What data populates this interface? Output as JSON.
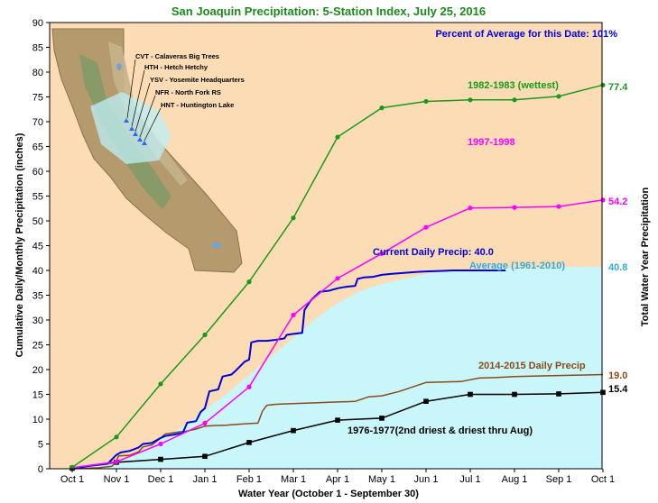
{
  "chart_data": {
    "type": "line",
    "title": "San Joaquin Precipitation: 5-Station Index, July 25, 2016",
    "ylabel": "Cumulative Daily/Monthly Precipitation (inches)",
    "ylabel_right": "Total Water Year Precipitation",
    "xlabel": "Water Year (October 1 - September 30)",
    "percent_note": "Percent of Average for this Date: 101%",
    "ylim": [
      0,
      90
    ],
    "y_ticks": [
      0,
      5,
      10,
      15,
      20,
      25,
      30,
      35,
      40,
      45,
      50,
      55,
      60,
      65,
      70,
      75,
      80,
      85,
      90
    ],
    "x_categories": [
      "Oct 1",
      "Nov 1",
      "Dec 1",
      "Jan 1",
      "Feb 1",
      "Mar 1",
      "Apr 1",
      "May 1",
      "Jun 1",
      "Jul 1",
      "Aug 1",
      "Sep 1",
      "Oct 1"
    ],
    "grid": false,
    "series": [
      {
        "name": "1982-1983 (wettest)",
        "color": "#1a9a1a",
        "marker": "circle",
        "total_label": "77.4",
        "x": [
          0,
          1,
          2,
          3,
          4,
          5,
          6,
          7,
          8,
          9,
          10,
          11,
          12
        ],
        "y": [
          0.3,
          6.4,
          17.1,
          27.0,
          37.7,
          50.6,
          66.9,
          72.8,
          74.1,
          74.4,
          74.4,
          75.1,
          77.4
        ]
      },
      {
        "name": "1997-1998",
        "color": "#ff00ff",
        "marker": "circle",
        "total_label": "54.2",
        "x": [
          0,
          1,
          2,
          3,
          4,
          5,
          6,
          7,
          8,
          9,
          10,
          11,
          12
        ],
        "y": [
          0.2,
          1.4,
          5.0,
          9.2,
          16.5,
          31.0,
          38.4,
          43.4,
          48.7,
          52.6,
          52.7,
          52.9,
          54.2
        ]
      },
      {
        "name": "Average (1961-2010)",
        "color": "#33aadd",
        "fill": "#c8f6fa",
        "total_label": "40.8",
        "x": [
          0,
          0.5,
          1,
          1.5,
          2,
          2.5,
          3,
          3.5,
          4,
          4.5,
          5,
          5.5,
          6,
          6.5,
          7,
          7.5,
          8,
          8.5,
          9,
          9.5,
          10,
          11,
          12
        ],
        "y": [
          0,
          0.5,
          1.6,
          3.4,
          5.8,
          8.5,
          11.8,
          15.2,
          18.9,
          22.6,
          26.4,
          30.2,
          33.4,
          35.8,
          37.3,
          38.3,
          39.3,
          39.8,
          40.2,
          40.4,
          40.5,
          40.7,
          40.8
        ]
      },
      {
        "name": "Current Daily Precip: 40.0",
        "color": "#0000dd",
        "x": [
          0,
          0.2,
          0.4,
          0.6,
          0.8,
          1.0,
          1.1,
          1.3,
          1.5,
          1.6,
          1.8,
          2.0,
          2.1,
          2.3,
          2.5,
          2.6,
          2.8,
          2.9,
          3.0,
          3.1,
          3.3,
          3.4,
          3.6,
          3.7,
          3.9,
          4.0,
          4.05,
          4.2,
          4.4,
          4.6,
          4.8,
          4.85,
          5.0,
          5.2,
          5.25,
          5.4,
          5.6,
          5.8,
          6.0,
          6.2,
          6.4,
          6.45,
          6.6,
          6.8,
          7.0,
          7.2,
          7.5,
          7.8,
          8.0,
          8.3,
          8.6,
          8.8,
          9.0,
          9.3,
          9.6,
          9.8
        ],
        "y": [
          0,
          0.3,
          0.6,
          0.8,
          1.0,
          2.8,
          3.3,
          3.6,
          4.3,
          5.0,
          5.2,
          6.2,
          6.6,
          6.9,
          7.2,
          9.3,
          9.6,
          11.4,
          12.2,
          15.6,
          16.0,
          18.6,
          19.0,
          19.8,
          21.6,
          22.0,
          25.5,
          25.8,
          25.8,
          26.0,
          26.3,
          27.0,
          27.2,
          27.4,
          32.0,
          34.0,
          35.7,
          35.9,
          36.4,
          36.7,
          36.9,
          38.3,
          38.6,
          38.7,
          39.1,
          39.3,
          39.5,
          39.7,
          39.8,
          39.9,
          40.0,
          40.0,
          40.0,
          40.0,
          40.0,
          40.0
        ]
      },
      {
        "name": "2014-2015 Daily Precip",
        "color": "#8b4a17",
        "total_label": "19.0",
        "x": [
          0,
          0.3,
          0.6,
          0.9,
          1.0,
          1.05,
          1.3,
          1.5,
          1.6,
          1.8,
          2.0,
          2.1,
          2.4,
          2.6,
          2.8,
          3.0,
          3.2,
          3.5,
          3.8,
          4.0,
          4.2,
          4.3,
          4.4,
          4.6,
          4.9,
          5.2,
          5.5,
          5.8,
          6.1,
          6.4,
          6.7,
          7.0,
          7.4,
          7.8,
          8.0,
          8.4,
          8.8,
          9.2,
          9.6,
          10.0,
          10.5,
          11.0,
          11.5,
          12.0
        ],
        "y": [
          0,
          0.1,
          0.2,
          0.5,
          1.6,
          2.6,
          2.7,
          3.4,
          4.4,
          4.8,
          6.2,
          7.0,
          7.4,
          7.6,
          8.0,
          8.6,
          8.7,
          8.8,
          9.0,
          9.1,
          9.2,
          11.6,
          12.8,
          13.0,
          13.1,
          13.2,
          13.3,
          13.4,
          13.5,
          13.6,
          14.5,
          14.7,
          15.6,
          16.8,
          17.4,
          17.5,
          17.6,
          18.3,
          18.4,
          18.6,
          18.7,
          18.8,
          18.9,
          19.0
        ]
      },
      {
        "name": "1976-1977(2nd driest & driest thru Aug)",
        "color": "#000000",
        "marker": "square",
        "total_label": "15.4",
        "x": [
          0,
          1,
          2,
          3,
          4,
          5,
          6,
          7,
          8,
          9,
          10,
          11,
          12
        ],
        "y": [
          0.1,
          1.3,
          1.9,
          2.5,
          5.3,
          7.7,
          9.8,
          10.2,
          13.6,
          15.0,
          15.0,
          15.1,
          15.4
        ]
      }
    ],
    "inset_map": {
      "stations": [
        "CVT - Calaveras Big Trees",
        "HTH - Hetch Hetchy",
        "YSV - Yosemite Headquarters",
        "NFR - North Fork RS",
        "HNT - Huntington Lake"
      ]
    }
  }
}
